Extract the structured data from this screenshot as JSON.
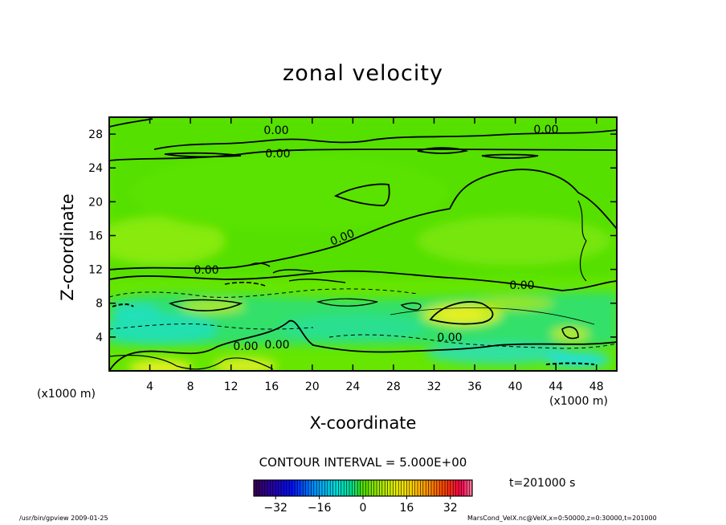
{
  "title": "zonal velocity",
  "chart_data": {
    "type": "contour",
    "title": "zonal velocity",
    "xlabel": "X-coordinate",
    "ylabel": "Z-coordinate",
    "x_unit": "(x1000 m)",
    "xlim": [
      0,
      50
    ],
    "ylim": [
      0,
      30
    ],
    "x_ticks": [
      4,
      8,
      12,
      16,
      20,
      24,
      28,
      32,
      36,
      40,
      44,
      48
    ],
    "y_ticks": [
      4,
      8,
      12,
      16,
      20,
      24,
      28
    ],
    "contour_labels": [
      "0.00",
      "0.00",
      "0.00",
      "0.00",
      "0.00",
      "0.00",
      "0.00",
      "0.00",
      "0.00"
    ],
    "contour_interval": "CONTOUR INTERVAL = 5.000E+00",
    "colorbar": {
      "range": [
        -40,
        40
      ],
      "ticks": [
        -32,
        -16,
        0,
        16,
        32
      ]
    },
    "time_label": "t=201000 s"
  },
  "footer": {
    "left": "/usr/bin/gpview   2009-01-25",
    "right": "MarsCond_VelX.nc@VelX,x=0:50000,z=0:30000,t=201000"
  }
}
